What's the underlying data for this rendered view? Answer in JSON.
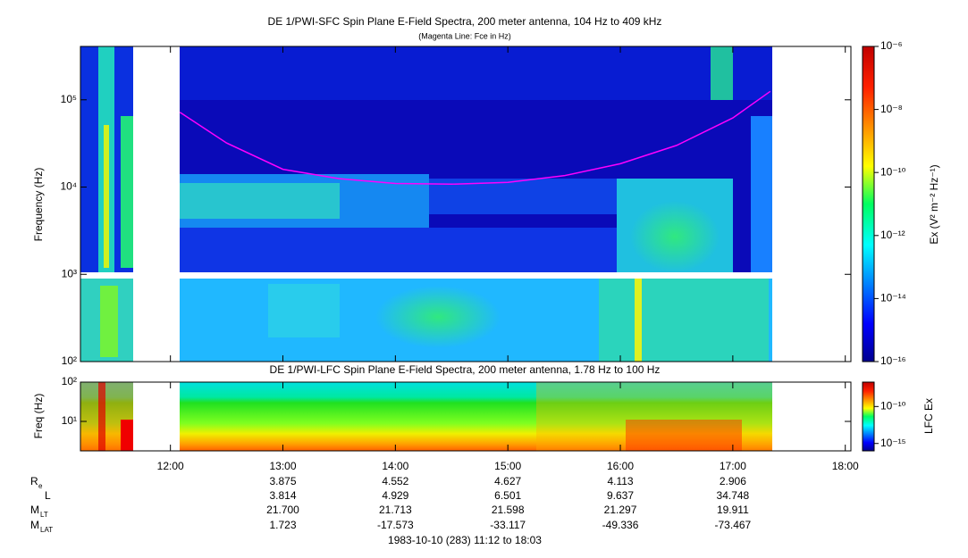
{
  "chart_data": [
    {
      "type": "heatmap",
      "title": "DE 1/PWI-SFC  Spin Plane E-Field Spectra, 200 meter antenna, 104 Hz to 409 kHz",
      "subtitle": "(Magenta Line: Fce in Hz)",
      "ylabel": "Frequency (Hz)",
      "log_y": true,
      "xlim": [
        "11:12",
        "18:03"
      ],
      "xticks": [
        "12:00",
        "13:00",
        "14:00",
        "15:00",
        "16:00",
        "17:00",
        "18:00"
      ],
      "ylim": [
        100,
        409000
      ],
      "yticks": [
        {
          "value": 100,
          "label": "10²"
        },
        {
          "value": 1000,
          "label": "10³"
        },
        {
          "value": 10000,
          "label": "10⁴"
        },
        {
          "value": 100000,
          "label": "10⁵"
        }
      ],
      "line": {
        "color": "#ff00ff",
        "x": [
          "12:05",
          "12:30",
          "13:00",
          "13:30",
          "14:00",
          "14:30",
          "15:00",
          "15:30",
          "16:00",
          "16:30",
          "17:00",
          "17:20"
        ],
        "values": [
          72000,
          32000,
          16000,
          12500,
          11000,
          10800,
          11300,
          13500,
          18500,
          30000,
          62000,
          125000
        ]
      },
      "colorbar": {
        "label": "Ex (V² m⁻² Hz⁻¹)",
        "log": true,
        "ylim": [
          1e-16,
          1e-06
        ],
        "yticks": [
          {
            "value": 1e-16,
            "label": "10⁻¹⁶"
          },
          {
            "value": 1e-14,
            "label": "10⁻¹⁴"
          },
          {
            "value": 1e-12,
            "label": "10⁻¹²"
          },
          {
            "value": 1e-10,
            "label": "10⁻¹⁰"
          },
          {
            "value": 1e-08,
            "label": "10⁻⁸"
          },
          {
            "value": 1e-06,
            "label": "10⁻⁶"
          }
        ]
      }
    },
    {
      "type": "heatmap",
      "title": "DE 1/PWI-LFC  Spin Plane E-Field Spectra, 200 meter antenna, 1.78 Hz to 100 Hz",
      "ylabel": "Freq (Hz)",
      "log_y": true,
      "xlim": [
        "11:12",
        "18:03"
      ],
      "xticks": [
        "12:00",
        "13:00",
        "14:00",
        "15:00",
        "16:00",
        "17:00",
        "18:00"
      ],
      "ylim": [
        1.78,
        100
      ],
      "yticks": [
        {
          "value": 10,
          "label": "10¹"
        },
        {
          "value": 100,
          "label": "10²"
        }
      ],
      "colorbar": {
        "label": "LFC Ex",
        "log": true,
        "ylim": [
          1e-16,
          2e-07
        ],
        "yticks": [
          {
            "value": 1e-15,
            "label": "10⁻¹⁵"
          },
          {
            "value": 1e-10,
            "label": "10⁻¹⁰"
          }
        ]
      }
    }
  ],
  "ephemeris": {
    "rows": [
      {
        "label": {
          "main": "R",
          "sub": "e"
        },
        "values": [
          "3.875",
          "4.552",
          "4.627",
          "4.113",
          "2.906"
        ]
      },
      {
        "label": {
          "main": "L",
          "sub": ""
        },
        "values": [
          "3.814",
          "4.929",
          "6.501",
          "9.637",
          "34.748"
        ]
      },
      {
        "label": {
          "main": "M",
          "sub": "LT"
        },
        "values": [
          "21.700",
          "21.713",
          "21.598",
          "21.297",
          "19.911"
        ]
      },
      {
        "label": {
          "main": "M",
          "sub": "LAT"
        },
        "values": [
          "1.723",
          "-17.573",
          "-33.117",
          "-49.336",
          "-73.467"
        ]
      }
    ]
  },
  "footer": "1983-10-10 (283) 11:12 to 18:03"
}
